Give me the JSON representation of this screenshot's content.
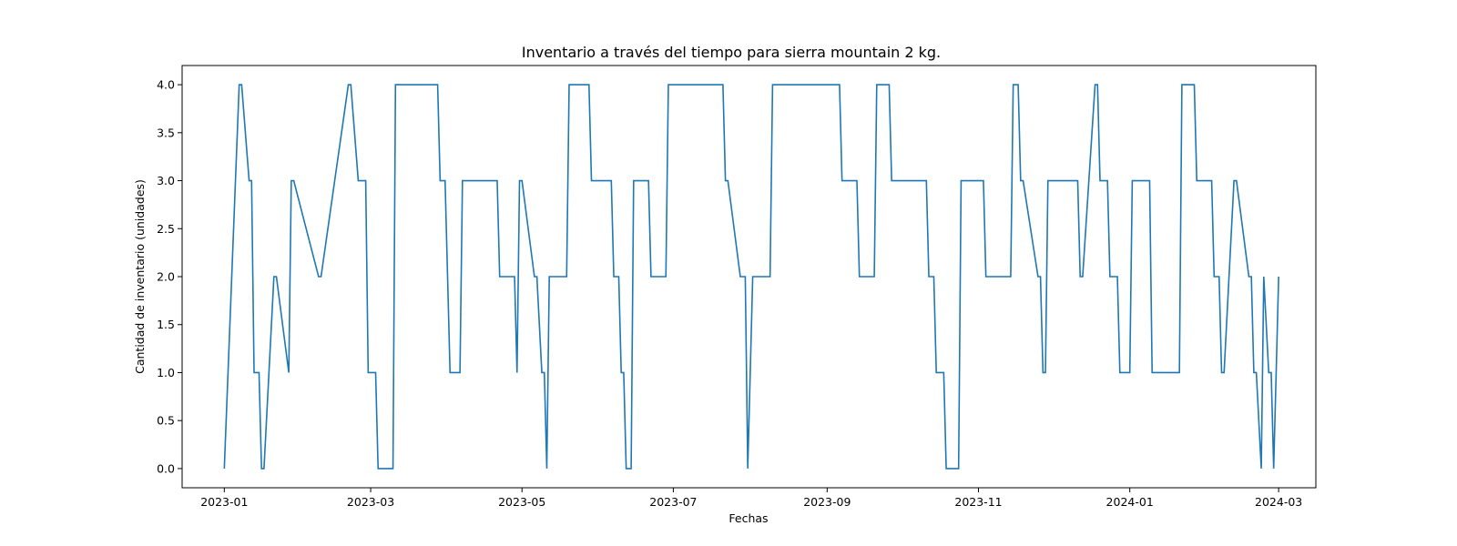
{
  "chart_data": {
    "type": "line",
    "title": "Inventario a través del tiempo para sierra mountain 2 kg.",
    "xlabel": "Fechas",
    "ylabel": "Cantidad de inventario (unidades)",
    "xlim": [
      "2022-12-15",
      "2024-03-16"
    ],
    "ylim": [
      -0.2,
      4.2
    ],
    "grid": false,
    "line_color": "#1f77b4",
    "x_ticks": [
      "2023-01",
      "2023-03",
      "2023-05",
      "2023-07",
      "2023-09",
      "2023-11",
      "2024-01",
      "2024-03"
    ],
    "y_ticks": [
      "0.0",
      "0.5",
      "1.0",
      "1.5",
      "2.0",
      "2.5",
      "3.0",
      "3.5",
      "4.0"
    ],
    "series": [
      {
        "x": [
          "2023-01-01",
          "2023-01-07",
          "2023-01-08",
          "2023-01-11",
          "2023-01-12",
          "2023-01-13",
          "2023-01-15",
          "2023-01-16",
          "2023-01-17",
          "2023-01-21",
          "2023-01-22",
          "2023-01-27",
          "2023-01-28",
          "2023-01-29",
          "2023-02-08",
          "2023-02-09",
          "2023-02-20",
          "2023-02-21",
          "2023-02-24",
          "2023-02-27",
          "2023-02-28",
          "2023-03-03",
          "2023-03-04",
          "2023-03-10",
          "2023-03-11",
          "2023-03-28",
          "2023-03-29",
          "2023-03-31",
          "2023-04-01",
          "2023-04-02",
          "2023-04-06",
          "2023-04-07",
          "2023-04-21",
          "2023-04-22",
          "2023-04-28",
          "2023-04-29",
          "2023-04-30",
          "2023-05-01",
          "2023-05-06",
          "2023-05-07",
          "2023-05-09",
          "2023-05-10",
          "2023-05-11",
          "2023-05-12",
          "2023-05-19",
          "2023-05-20",
          "2023-05-28",
          "2023-05-29",
          "2023-06-06",
          "2023-06-07",
          "2023-06-09",
          "2023-06-10",
          "2023-06-11",
          "2023-06-12",
          "2023-06-14",
          "2023-06-15",
          "2023-06-21",
          "2023-06-22",
          "2023-06-28",
          "2023-06-29",
          "2023-07-21",
          "2023-07-22",
          "2023-07-23",
          "2023-07-28",
          "2023-07-30",
          "2023-07-31",
          "2023-08-02",
          "2023-08-09",
          "2023-08-10",
          "2023-09-06",
          "2023-09-07",
          "2023-09-13",
          "2023-09-14",
          "2023-09-20",
          "2023-09-21",
          "2023-09-26",
          "2023-09-27",
          "2023-10-11",
          "2023-10-12",
          "2023-10-14",
          "2023-10-15",
          "2023-10-18",
          "2023-10-19",
          "2023-10-24",
          "2023-10-25",
          "2023-11-03",
          "2023-11-04",
          "2023-11-14",
          "2023-11-15",
          "2023-11-17",
          "2023-11-18",
          "2023-11-19",
          "2023-11-25",
          "2023-11-26",
          "2023-11-27",
          "2023-11-28",
          "2023-11-29",
          "2023-12-11",
          "2023-12-12",
          "2023-12-13",
          "2023-12-18",
          "2023-12-19",
          "2023-12-20",
          "2023-12-23",
          "2023-12-24",
          "2023-12-27",
          "2023-12-28",
          "2024-01-01",
          "2024-01-02",
          "2024-01-09",
          "2024-01-10",
          "2024-01-21",
          "2024-01-22",
          "2024-01-27",
          "2024-01-28",
          "2024-02-03",
          "2024-02-04",
          "2024-02-06",
          "2024-02-07",
          "2024-02-08",
          "2024-02-12",
          "2024-02-13",
          "2024-02-18",
          "2024-02-19",
          "2024-02-20",
          "2024-02-21",
          "2024-02-23",
          "2024-02-24",
          "2024-02-26",
          "2024-02-27",
          "2024-02-28",
          "2024-03-01"
        ],
        "y": [
          0,
          4,
          4,
          3,
          3,
          1,
          1,
          0,
          0,
          2,
          2,
          1,
          3,
          3,
          2,
          2,
          4,
          4,
          3,
          3,
          1,
          1,
          0,
          0,
          4,
          4,
          3,
          3,
          2,
          1,
          1,
          3,
          3,
          2,
          2,
          1,
          3,
          3,
          2,
          2,
          1,
          1,
          0,
          2,
          2,
          4,
          4,
          3,
          3,
          2,
          2,
          1,
          1,
          0,
          0,
          3,
          3,
          2,
          2,
          4,
          4,
          3,
          3,
          2,
          2,
          0,
          2,
          2,
          4,
          4,
          3,
          3,
          2,
          2,
          4,
          4,
          3,
          3,
          2,
          2,
          1,
          1,
          0,
          0,
          3,
          3,
          2,
          2,
          4,
          4,
          3,
          3,
          2,
          2,
          1,
          1,
          3,
          3,
          2,
          2,
          4,
          4,
          3,
          3,
          2,
          2,
          1,
          1,
          3,
          3,
          1,
          1,
          4,
          4,
          3,
          3,
          2,
          2,
          1,
          1,
          3,
          3,
          2,
          2,
          1,
          1,
          0,
          2,
          1,
          1,
          0,
          2
        ]
      }
    ]
  }
}
